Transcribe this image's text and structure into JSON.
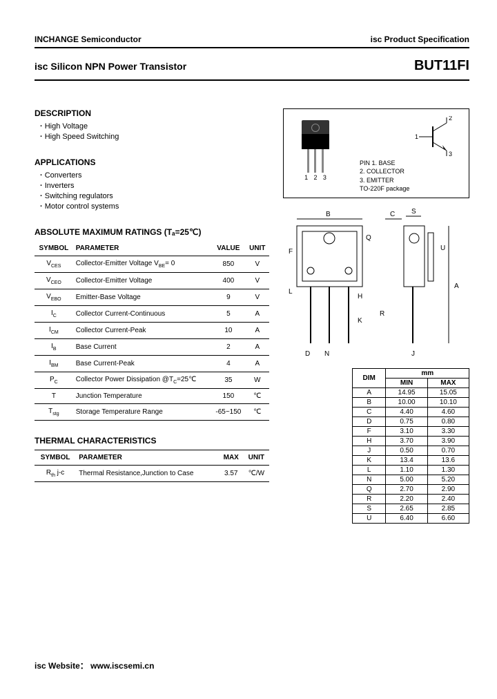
{
  "header": {
    "company": "INCHANGE Semiconductor",
    "spec": "isc Product Specification",
    "title": "isc Silicon NPN Power Transistor",
    "part": "BUT11FI"
  },
  "description": {
    "heading": "DESCRIPTION",
    "items": [
      "High Voltage",
      "High Speed Switching"
    ]
  },
  "applications": {
    "heading": "APPLICATIONS",
    "items": [
      "Converters",
      "Inverters",
      "Switching regulators",
      "Motor control systems"
    ]
  },
  "ratings": {
    "heading": "ABSOLUTE MAXIMUM RATINGS (Tₐ=25℃)",
    "columns": [
      "SYMBOL",
      "PARAMETER",
      "VALUE",
      "UNIT"
    ],
    "rows": [
      {
        "sym": "V_CES",
        "param": "Collector-Emitter Voltage V_BE= 0",
        "val": "850",
        "unit": "V"
      },
      {
        "sym": "V_CEO",
        "param": "Collector-Emitter Voltage",
        "val": "400",
        "unit": "V"
      },
      {
        "sym": "V_EBO",
        "param": "Emitter-Base Voltage",
        "val": "9",
        "unit": "V"
      },
      {
        "sym": "I_C",
        "param": "Collector Current-Continuous",
        "val": "5",
        "unit": "A"
      },
      {
        "sym": "I_CM",
        "param": "Collector Current-Peak",
        "val": "10",
        "unit": "A"
      },
      {
        "sym": "I_B",
        "param": "Base Current",
        "val": "2",
        "unit": "A"
      },
      {
        "sym": "I_BM",
        "param": "Base Current-Peak",
        "val": "4",
        "unit": "A"
      },
      {
        "sym": "P_C",
        "param": "Collector Power Dissipation @T_C=25℃",
        "val": "35",
        "unit": "W"
      },
      {
        "sym": "T",
        "param": "Junction Temperature",
        "val": "150",
        "unit": "℃"
      },
      {
        "sym": "T_stg",
        "param": "Storage Temperature Range",
        "val": "-65~150",
        "unit": "℃"
      }
    ]
  },
  "thermal": {
    "heading": "THERMAL CHARACTERISTICS",
    "columns": [
      "SYMBOL",
      "PARAMETER",
      "MAX",
      "UNIT"
    ],
    "rows": [
      {
        "sym": "R_th j-c",
        "param": "Thermal Resistance,Junction to Case",
        "val": "3.57",
        "unit": "℃/W"
      }
    ]
  },
  "package": {
    "pins_bottom": [
      "1",
      "2",
      "3"
    ],
    "sym_pins": {
      "p1": "1",
      "p2": "2",
      "p3": "3"
    },
    "pin_legend": [
      "PIN 1. BASE",
      "2. COLLECTOR",
      "3. EMITTER",
      "TO-220F package"
    ]
  },
  "dims": {
    "unit_head": "mm",
    "columns": [
      "DIM",
      "MIN",
      "MAX"
    ],
    "rows": [
      {
        "d": "A",
        "min": "14.95",
        "max": "15.05"
      },
      {
        "d": "B",
        "min": "10.00",
        "max": "10.10"
      },
      {
        "d": "C",
        "min": "4.40",
        "max": "4.60"
      },
      {
        "d": "D",
        "min": "0.75",
        "max": "0.80"
      },
      {
        "d": "F",
        "min": "3.10",
        "max": "3.30"
      },
      {
        "d": "H",
        "min": "3.70",
        "max": "3.90"
      },
      {
        "d": "J",
        "min": "0.50",
        "max": "0.70"
      },
      {
        "d": "K",
        "min": "13.4",
        "max": "13.6"
      },
      {
        "d": "L",
        "min": "1.10",
        "max": "1.30"
      },
      {
        "d": "N",
        "min": "5.00",
        "max": "5.20"
      },
      {
        "d": "Q",
        "min": "2.70",
        "max": "2.90"
      },
      {
        "d": "R",
        "min": "2.20",
        "max": "2.40"
      },
      {
        "d": "S",
        "min": "2.65",
        "max": "2.85"
      },
      {
        "d": "U",
        "min": "6.40",
        "max": "6.60"
      }
    ]
  },
  "mech_labels": {
    "B": "B",
    "C": "C",
    "S": "S",
    "Q": "Q",
    "F": "F",
    "L": "L",
    "H": "H",
    "K": "K",
    "D": "D",
    "N": "N",
    "R": "R",
    "J": "J",
    "U": "U",
    "A": "A"
  },
  "footer": {
    "label": "isc Website：",
    "url": "www.iscsemi.cn"
  }
}
